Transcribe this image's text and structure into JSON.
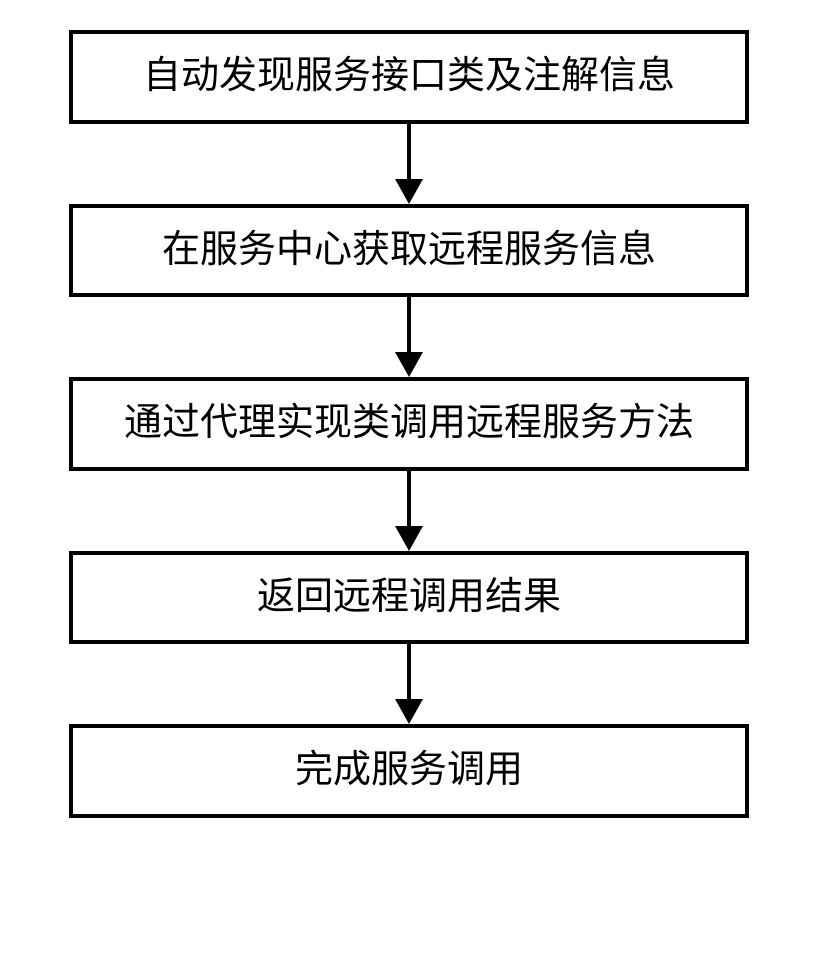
{
  "flowchart": {
    "type": "flowchart",
    "direction": "vertical",
    "background_color": "#ffffff",
    "box_style": {
      "border_color": "#000000",
      "border_width": 4,
      "fill_color": "#ffffff",
      "font_size": 38,
      "font_color": "#000000",
      "font_family": "SimSun",
      "padding_vertical": 20,
      "padding_horizontal": 30,
      "min_width": 680
    },
    "arrow_style": {
      "line_color": "#000000",
      "line_width": 4,
      "line_length": 55,
      "head_width": 28,
      "head_height": 25,
      "head_color": "#000000"
    },
    "nodes": [
      {
        "id": "step1",
        "label": "自动发现服务接口类及注解信息"
      },
      {
        "id": "step2",
        "label": "在服务中心获取远程服务信息"
      },
      {
        "id": "step3",
        "label": "通过代理实现类调用远程服务方法"
      },
      {
        "id": "step4",
        "label": "返回远程调用结果"
      },
      {
        "id": "step5",
        "label": "完成服务调用"
      }
    ],
    "edges": [
      {
        "from": "step1",
        "to": "step2"
      },
      {
        "from": "step2",
        "to": "step3"
      },
      {
        "from": "step3",
        "to": "step4"
      },
      {
        "from": "step4",
        "to": "step5"
      }
    ]
  }
}
